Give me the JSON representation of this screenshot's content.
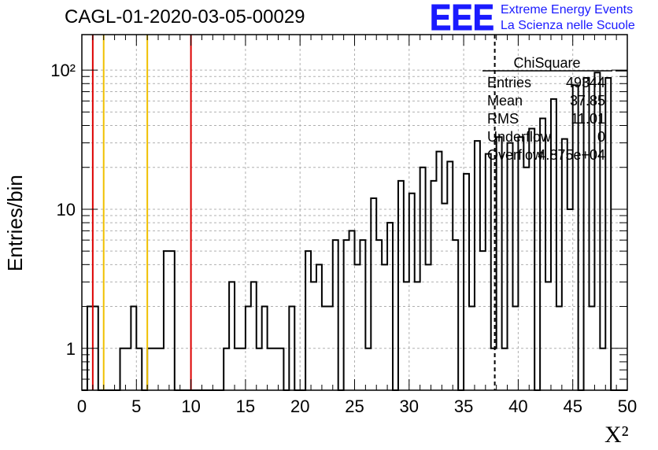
{
  "header": {
    "title": "CAGL-01-2020-03-05-00029",
    "logo_text": "EEE",
    "logo_line1": "Extreme Energy Events",
    "logo_line2": "La Scienza nelle Scuole",
    "logo_color": "#1a1aff"
  },
  "stats": {
    "title": "ChiSquare",
    "rows": [
      {
        "label": "Entries",
        "value": "49344"
      },
      {
        "label": "Mean",
        "value": "37.85"
      },
      {
        "label": "RMS",
        "value": "11.01"
      },
      {
        "label": "Underflow",
        "value": "0"
      },
      {
        "label": "Overflow",
        "value": "4.875e+04"
      }
    ]
  },
  "chart_data": {
    "type": "bar",
    "title": "CAGL-01-2020-03-05-00029",
    "xlabel": "X²",
    "ylabel": "Entries/bin",
    "xlim": [
      0,
      50
    ],
    "ylim": [
      0.5,
      180
    ],
    "yscale": "log",
    "grid": true,
    "xticks": [
      0,
      5,
      10,
      15,
      20,
      25,
      30,
      35,
      40,
      45,
      50
    ],
    "yticks": [
      1,
      10,
      100
    ],
    "ytick_labels": [
      "1",
      "10",
      "10²"
    ],
    "bin_width": 0.5,
    "bins": [
      [
        0.5,
        2
      ],
      [
        1.0,
        2
      ],
      [
        3.5,
        1
      ],
      [
        4.0,
        1
      ],
      [
        4.5,
        2
      ],
      [
        5.0,
        1
      ],
      [
        6.0,
        1
      ],
      [
        6.5,
        1
      ],
      [
        7.0,
        1
      ],
      [
        7.5,
        5
      ],
      [
        8.0,
        5
      ],
      [
        13.0,
        1
      ],
      [
        13.5,
        3
      ],
      [
        14.0,
        1
      ],
      [
        14.5,
        1
      ],
      [
        15.0,
        2
      ],
      [
        15.5,
        3
      ],
      [
        16.0,
        1
      ],
      [
        16.5,
        2
      ],
      [
        17.0,
        1
      ],
      [
        17.5,
        1
      ],
      [
        18.0,
        1
      ],
      [
        19.0,
        2
      ],
      [
        20.5,
        5
      ],
      [
        21.0,
        3
      ],
      [
        21.5,
        4
      ],
      [
        22.0,
        2
      ],
      [
        22.5,
        2
      ],
      [
        23.0,
        6
      ],
      [
        24.0,
        6
      ],
      [
        24.5,
        7
      ],
      [
        25.0,
        4
      ],
      [
        25.5,
        6
      ],
      [
        26.0,
        1
      ],
      [
        26.5,
        12
      ],
      [
        27.0,
        6
      ],
      [
        27.5,
        4
      ],
      [
        28.0,
        8
      ],
      [
        29.0,
        16
      ],
      [
        29.5,
        3
      ],
      [
        30.0,
        13
      ],
      [
        30.5,
        3
      ],
      [
        31.0,
        20
      ],
      [
        31.5,
        4
      ],
      [
        32.0,
        16
      ],
      [
        32.5,
        26
      ],
      [
        33.0,
        11
      ],
      [
        33.5,
        22
      ],
      [
        34.0,
        6
      ],
      [
        35.0,
        18
      ],
      [
        35.5,
        2
      ],
      [
        36.0,
        31
      ],
      [
        36.5,
        5
      ],
      [
        37.0,
        25
      ],
      [
        37.5,
        1
      ],
      [
        38.0,
        33
      ],
      [
        38.5,
        1
      ],
      [
        39.0,
        30
      ],
      [
        39.5,
        2
      ],
      [
        40.0,
        33
      ],
      [
        40.5,
        20
      ],
      [
        41.0,
        38
      ],
      [
        42.0,
        45
      ],
      [
        42.5,
        3
      ],
      [
        43.0,
        62
      ],
      [
        43.5,
        2
      ],
      [
        44.0,
        32
      ],
      [
        44.5,
        10
      ],
      [
        45.0,
        78
      ],
      [
        46.0,
        88
      ],
      [
        46.5,
        2
      ],
      [
        47.0,
        96
      ],
      [
        47.5,
        1
      ],
      [
        48.0,
        88
      ]
    ],
    "vertical_lines": [
      {
        "x": 1,
        "color": "#dd0000"
      },
      {
        "x": 2,
        "color": "#f0c000"
      },
      {
        "x": 6,
        "color": "#f0c000"
      },
      {
        "x": 10,
        "color": "#dd0000"
      },
      {
        "x": 37.85,
        "color": "#000000",
        "style": "dashed"
      }
    ]
  }
}
